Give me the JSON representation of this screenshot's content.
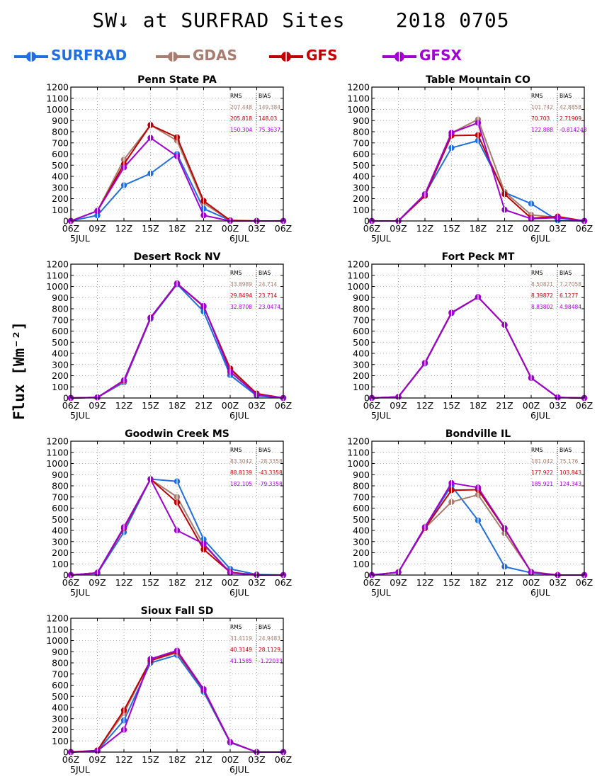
{
  "title": "SW↓ at SURFRAD Sites    2018 0705",
  "ylabel": "Flux [Wm⁻²]",
  "legend": [
    {
      "name": "SURFRAD",
      "color": "#1f6fe0"
    },
    {
      "name": "GDAS",
      "color": "#a87c6e"
    },
    {
      "name": "GFS",
      "color": "#c00000"
    },
    {
      "name": "GFSX",
      "color": "#a000d0"
    }
  ],
  "stats_header": {
    "rms": "RMS",
    "bias": "BIAS"
  },
  "chart_data": [
    {
      "type": "line",
      "title": "Penn State PA",
      "x": [
        "06Z",
        "09Z",
        "12Z",
        "15Z",
        "18Z",
        "21Z",
        "00Z",
        "03Z",
        "06Z"
      ],
      "date_labels": [
        "5JUL",
        "6JUL"
      ],
      "ylim": [
        0,
        1200
      ],
      "yticks": [
        0,
        100,
        200,
        300,
        400,
        500,
        600,
        700,
        800,
        900,
        1000,
        1100,
        1200
      ],
      "grid": true,
      "series": [
        {
          "name": "SURFRAD",
          "values": [
            0,
            50,
            320,
            425,
            600,
            110,
            5,
            null,
            null
          ]
        },
        {
          "name": "GDAS",
          "values": [
            0,
            90,
            550,
            860,
            720,
            160,
            5,
            0,
            0
          ]
        },
        {
          "name": "GFS",
          "values": [
            0,
            90,
            510,
            860,
            750,
            180,
            5,
            0,
            0
          ]
        },
        {
          "name": "GFSX",
          "values": [
            0,
            90,
            480,
            745,
            580,
            50,
            0,
            0,
            0
          ]
        }
      ],
      "stats": [
        {
          "rms": "207.448",
          "bias": "149.384"
        },
        {
          "rms": "205.818",
          "bias": "148.03"
        },
        {
          "rms": "150.304",
          "bias": "75.3637"
        }
      ]
    },
    {
      "type": "line",
      "title": "Table Mountain CO",
      "x": [
        "06Z",
        "09Z",
        "12Z",
        "15Z",
        "18Z",
        "21Z",
        "00Z",
        "03Z",
        "06Z"
      ],
      "date_labels": [
        "5JUL",
        "6JUL"
      ],
      "ylim": [
        0,
        1200
      ],
      "yticks": [
        0,
        100,
        200,
        300,
        400,
        500,
        600,
        700,
        800,
        900,
        1000,
        1100,
        1200
      ],
      "grid": true,
      "series": [
        {
          "name": "SURFRAD",
          "values": [
            0,
            0,
            240,
            655,
            720,
            255,
            155,
            5,
            0
          ]
        },
        {
          "name": "GDAS",
          "values": [
            0,
            0,
            240,
            790,
            910,
            260,
            55,
            30,
            0
          ]
        },
        {
          "name": "GFS",
          "values": [
            0,
            0,
            225,
            765,
            770,
            240,
            25,
            40,
            0
          ]
        },
        {
          "name": "GFSX",
          "values": [
            0,
            0,
            240,
            790,
            880,
            100,
            20,
            30,
            0
          ]
        }
      ],
      "stats": [
        {
          "rms": "101.742",
          "bias": "42.8858"
        },
        {
          "rms": "70.703",
          "bias": "2.71909"
        },
        {
          "rms": "122.888",
          "bias": "-0.814243"
        }
      ]
    },
    {
      "type": "line",
      "title": "Desert Rock NV",
      "x": [
        "06Z",
        "09Z",
        "12Z",
        "15Z",
        "18Z",
        "21Z",
        "00Z",
        "03Z",
        "06Z"
      ],
      "date_labels": [
        "5JUL",
        "6JUL"
      ],
      "ylim": [
        0,
        1200
      ],
      "yticks": [
        0,
        100,
        200,
        300,
        400,
        500,
        600,
        700,
        800,
        900,
        1000,
        1100,
        1200
      ],
      "grid": true,
      "series": [
        {
          "name": "SURFRAD",
          "values": [
            0,
            5,
            140,
            710,
            1020,
            775,
            205,
            20,
            0
          ]
        },
        {
          "name": "GDAS",
          "values": [
            0,
            5,
            150,
            720,
            1030,
            820,
            255,
            35,
            0
          ]
        },
        {
          "name": "GFS",
          "values": [
            0,
            5,
            155,
            720,
            1025,
            820,
            265,
            40,
            0
          ]
        },
        {
          "name": "GFSX",
          "values": [
            0,
            5,
            160,
            720,
            1025,
            825,
            235,
            30,
            0
          ]
        }
      ],
      "stats": [
        {
          "rms": "33.8989",
          "bias": "24.714"
        },
        {
          "rms": "29.8494",
          "bias": "23.714"
        },
        {
          "rms": "32.8708",
          "bias": "23.0474"
        }
      ]
    },
    {
      "type": "line",
      "title": "Fort Peck MT",
      "x": [
        "06Z",
        "09Z",
        "12Z",
        "15Z",
        "18Z",
        "21Z",
        "00Z",
        "03Z",
        "06Z"
      ],
      "date_labels": [
        "5JUL",
        "6JUL"
      ],
      "ylim": [
        0,
        1200
      ],
      "yticks": [
        0,
        100,
        200,
        300,
        400,
        500,
        600,
        700,
        800,
        900,
        1000,
        1100,
        1200
      ],
      "grid": true,
      "series": [
        {
          "name": "SURFRAD",
          "values": [
            0,
            10,
            310,
            760,
            905,
            655,
            180,
            5,
            0
          ]
        },
        {
          "name": "GDAS",
          "values": [
            0,
            10,
            315,
            765,
            905,
            655,
            180,
            5,
            0
          ]
        },
        {
          "name": "GFS",
          "values": [
            0,
            10,
            315,
            765,
            905,
            655,
            180,
            5,
            0
          ]
        },
        {
          "name": "GFSX",
          "values": [
            0,
            10,
            315,
            765,
            905,
            655,
            180,
            5,
            0
          ]
        }
      ],
      "stats": [
        {
          "rms": "8.50821",
          "bias": "7.27058"
        },
        {
          "rms": "8.39872",
          "bias": "6.1277"
        },
        {
          "rms": "8.83802",
          "bias": "4.98484"
        }
      ]
    },
    {
      "type": "line",
      "title": "Goodwin Creek MS",
      "x": [
        "06Z",
        "09Z",
        "12Z",
        "15Z",
        "18Z",
        "21Z",
        "00Z",
        "03Z",
        "06Z"
      ],
      "date_labels": [
        "5JUL",
        "6JUL"
      ],
      "ylim": [
        0,
        1200
      ],
      "yticks": [
        0,
        100,
        200,
        300,
        400,
        500,
        600,
        700,
        800,
        900,
        1000,
        1100,
        1200
      ],
      "grid": true,
      "series": [
        {
          "name": "SURFRAD",
          "values": [
            0,
            15,
            385,
            860,
            840,
            320,
            55,
            5,
            0
          ]
        },
        {
          "name": "GDAS",
          "values": [
            0,
            20,
            420,
            860,
            700,
            270,
            25,
            0,
            0
          ]
        },
        {
          "name": "GFS",
          "values": [
            0,
            20,
            420,
            860,
            650,
            230,
            25,
            0,
            0
          ]
        },
        {
          "name": "GFSX",
          "values": [
            0,
            20,
            430,
            860,
            400,
            280,
            20,
            0,
            0
          ]
        }
      ],
      "stats": [
        {
          "rms": "83.3042",
          "bias": "-28.3358"
        },
        {
          "rms": "88.8139",
          "bias": "-43.3358"
        },
        {
          "rms": "182.105",
          "bias": "-79.3358"
        }
      ]
    },
    {
      "type": "line",
      "title": "Bondville IL",
      "x": [
        "06Z",
        "09Z",
        "12Z",
        "15Z",
        "18Z",
        "21Z",
        "00Z",
        "03Z",
        "06Z"
      ],
      "date_labels": [
        "5JUL",
        "6JUL"
      ],
      "ylim": [
        0,
        1200
      ],
      "yticks": [
        0,
        100,
        200,
        300,
        400,
        500,
        600,
        700,
        800,
        900,
        1000,
        1100,
        1200
      ],
      "grid": true,
      "series": [
        {
          "name": "SURFRAD",
          "values": [
            0,
            25,
            430,
            800,
            490,
            75,
            20,
            0,
            0
          ]
        },
        {
          "name": "GDAS",
          "values": [
            0,
            25,
            420,
            655,
            720,
            375,
            30,
            0,
            0
          ]
        },
        {
          "name": "GFS",
          "values": [
            0,
            25,
            420,
            760,
            765,
            415,
            25,
            0,
            0
          ]
        },
        {
          "name": "GFSX",
          "values": [
            0,
            25,
            430,
            825,
            785,
            420,
            25,
            0,
            0
          ]
        }
      ],
      "stats": [
        {
          "rms": "181.042",
          "bias": "75.176"
        },
        {
          "rms": "177.922",
          "bias": "103.843"
        },
        {
          "rms": "185.921",
          "bias": "124.343"
        }
      ]
    },
    {
      "type": "line",
      "title": "Sioux Fall SD",
      "x": [
        "06Z",
        "09Z",
        "12Z",
        "15Z",
        "18Z",
        "21Z",
        "00Z",
        "03Z",
        "06Z"
      ],
      "date_labels": [
        "5JUL",
        "6JUL"
      ],
      "ylim": [
        0,
        1200
      ],
      "yticks": [
        0,
        100,
        200,
        300,
        400,
        500,
        600,
        700,
        800,
        900,
        1000,
        1100,
        1200
      ],
      "grid": true,
      "series": [
        {
          "name": "SURFRAD",
          "values": [
            0,
            10,
            285,
            800,
            870,
            540,
            85,
            0,
            0
          ]
        },
        {
          "name": "GDAS",
          "values": [
            0,
            15,
            350,
            820,
            890,
            560,
            90,
            0,
            0
          ]
        },
        {
          "name": "GFS",
          "values": [
            0,
            15,
            375,
            820,
            900,
            560,
            90,
            0,
            0
          ]
        },
        {
          "name": "GFSX",
          "values": [
            0,
            10,
            200,
            835,
            910,
            565,
            90,
            0,
            0
          ]
        }
      ],
      "stats": [
        {
          "rms": "31.4119",
          "bias": "24.9483"
        },
        {
          "rms": "40.3149",
          "bias": "28.1129"
        },
        {
          "rms": "41.1585",
          "bias": "-1.22033"
        }
      ]
    }
  ]
}
